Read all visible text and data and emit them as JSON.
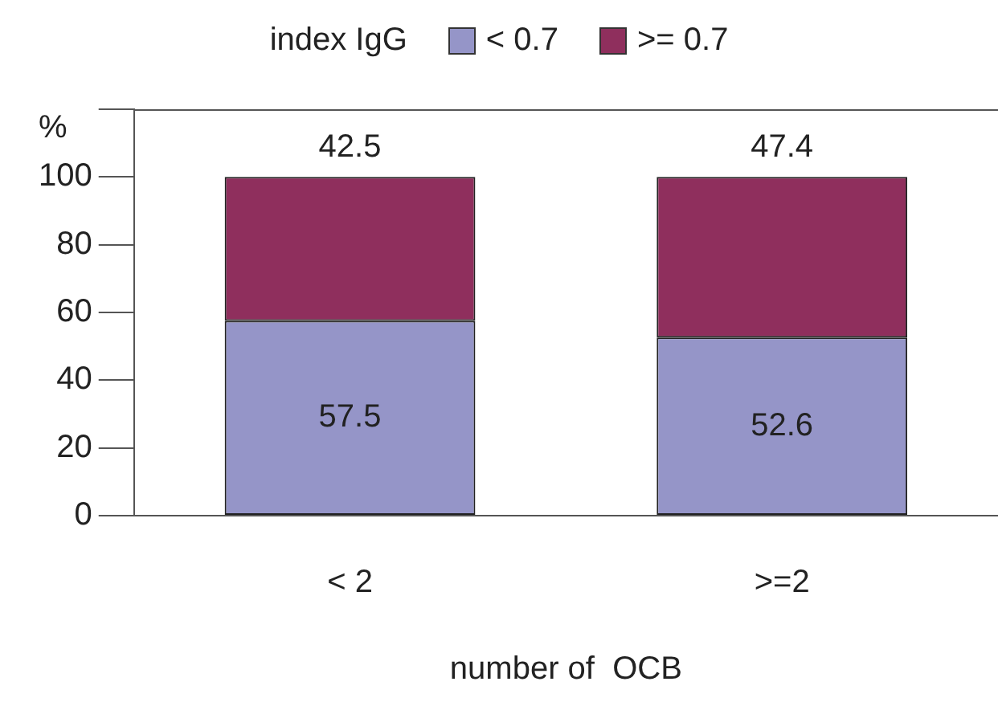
{
  "chart_data": {
    "type": "bar",
    "stacked": true,
    "legend_title": "index IgG",
    "legend": "top",
    "xlabel": "number of  OCB",
    "ylabel": "%",
    "categories": [
      "< 2",
      ">=2"
    ],
    "series": [
      {
        "name": "< 0.7",
        "color": "#9595c8",
        "values": [
          57.5,
          52.6
        ]
      },
      {
        "name": ">= 0.7",
        "color": "#8f2f5d",
        "values": [
          42.5,
          47.4
        ]
      }
    ],
    "ylim": [
      0,
      120
    ],
    "yticks": [
      0,
      20,
      40,
      60,
      80,
      100,
      {
        "value": 120,
        "label": null
      }
    ],
    "data_labels": true,
    "grid": false
  }
}
